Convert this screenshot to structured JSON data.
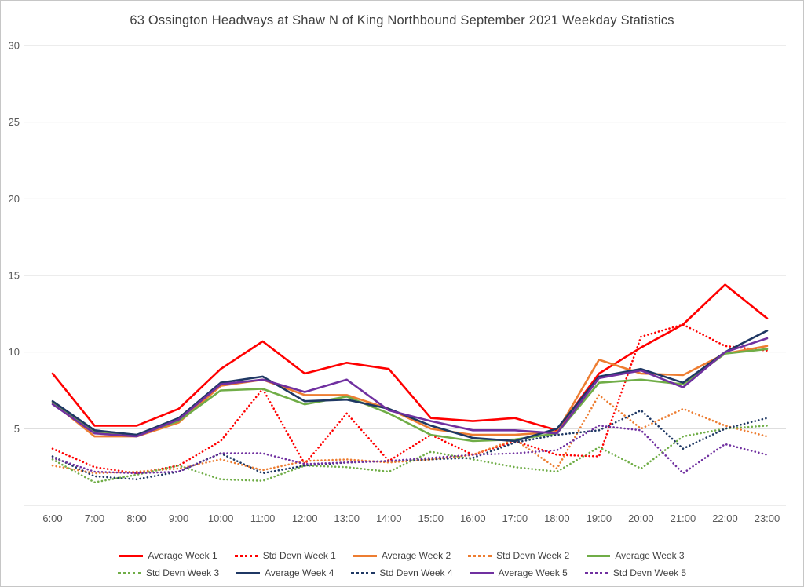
{
  "chart_data": {
    "type": "line",
    "title": "63 Ossington Headways at Shaw N of King Northbound September 2021 Weekday Statistics",
    "xlabel": "",
    "ylabel": "",
    "ylim": [
      0,
      30
    ],
    "yticks": [
      5,
      10,
      15,
      20,
      25,
      30
    ],
    "grid": "horizontal",
    "legend_position": "bottom",
    "x_labels": [
      "6:00",
      "7:00",
      "8:00",
      "9:00",
      "10:00",
      "11:00",
      "12:00",
      "13:00",
      "14:00",
      "15:00",
      "16:00",
      "17:00",
      "18:00",
      "19:00",
      "20:00",
      "21:00",
      "22:00",
      "23:00"
    ],
    "series": [
      {
        "name": "Average Week 1",
        "color": "#ff0000",
        "style": "solid",
        "values": [
          8.6,
          5.2,
          5.2,
          6.3,
          8.9,
          10.7,
          8.6,
          9.3,
          8.9,
          5.7,
          5.5,
          5.7,
          4.9,
          8.6,
          10.3,
          11.8,
          14.4,
          12.2
        ]
      },
      {
        "name": "Std Devn Week 1",
        "color": "#ff0000",
        "style": "dotted",
        "values": [
          3.7,
          2.5,
          2.1,
          2.6,
          4.2,
          7.6,
          2.7,
          6.0,
          2.9,
          4.6,
          3.3,
          4.2,
          3.3,
          3.2,
          11.0,
          11.8,
          10.4,
          10.1
        ]
      },
      {
        "name": "Average Week 2",
        "color": "#ed7d31",
        "style": "solid",
        "values": [
          6.7,
          4.5,
          4.5,
          5.4,
          7.8,
          8.2,
          7.2,
          7.2,
          6.3,
          5.0,
          4.6,
          4.6,
          4.8,
          9.5,
          8.6,
          8.5,
          9.9,
          10.4
        ]
      },
      {
        "name": "Std Devn Week 2",
        "color": "#ed7d31",
        "style": "dotted",
        "values": [
          2.6,
          2.1,
          2.2,
          2.4,
          3.0,
          2.3,
          2.9,
          3.0,
          2.8,
          3.0,
          3.3,
          4.3,
          2.4,
          7.2,
          5.0,
          6.3,
          5.2,
          4.5
        ]
      },
      {
        "name": "Average Week 3",
        "color": "#70ad47",
        "style": "solid",
        "values": [
          6.7,
          4.8,
          4.6,
          5.5,
          7.5,
          7.6,
          6.6,
          7.1,
          6.0,
          4.6,
          4.2,
          4.3,
          4.7,
          8.0,
          8.2,
          7.9,
          9.9,
          10.2
        ]
      },
      {
        "name": "Std Devn Week 3",
        "color": "#70ad47",
        "style": "dotted",
        "values": [
          3.0,
          1.5,
          2.0,
          2.6,
          1.7,
          1.6,
          2.6,
          2.5,
          2.2,
          3.5,
          3.0,
          2.5,
          2.2,
          3.8,
          2.4,
          4.5,
          5.0,
          5.2
        ]
      },
      {
        "name": "Average Week 4",
        "color": "#1f3864",
        "style": "solid",
        "values": [
          6.8,
          4.9,
          4.6,
          5.7,
          8.0,
          8.4,
          6.8,
          6.9,
          6.3,
          5.2,
          4.4,
          4.2,
          5.0,
          8.4,
          8.9,
          8.0,
          10.0,
          11.4
        ]
      },
      {
        "name": "Std Devn Week 4",
        "color": "#1f3864",
        "style": "dotted",
        "values": [
          3.2,
          1.9,
          1.7,
          2.2,
          3.4,
          2.1,
          2.6,
          2.8,
          2.9,
          3.0,
          3.1,
          4.1,
          4.6,
          4.9,
          6.2,
          3.7,
          5.0,
          5.7
        ]
      },
      {
        "name": "Average Week 5",
        "color": "#7030a0",
        "style": "solid",
        "values": [
          6.6,
          4.7,
          4.5,
          5.6,
          7.9,
          8.2,
          7.4,
          8.2,
          6.2,
          5.5,
          4.9,
          4.9,
          4.7,
          8.3,
          8.8,
          7.7,
          10.0,
          10.9
        ]
      },
      {
        "name": "Std Devn Week 5",
        "color": "#7030a0",
        "style": "dotted",
        "values": [
          3.1,
          2.2,
          2.1,
          2.2,
          3.4,
          3.4,
          2.7,
          2.8,
          2.9,
          3.1,
          3.3,
          3.4,
          3.6,
          5.2,
          4.9,
          2.1,
          4.0,
          3.3
        ]
      }
    ],
    "legend_rows": [
      [
        "Average Week 1",
        "Std Devn Week 1",
        "Average Week 2",
        "Std Devn Week 2",
        "Average Week 3"
      ],
      [
        "Std Devn Week 3",
        "Average Week 4",
        "Std Devn Week 4",
        "Average Week 5",
        "Std Devn Week 5"
      ]
    ],
    "colors": {
      "gridline": "#d9d9d9",
      "axis_text": "#595959",
      "title_text": "#404040"
    }
  }
}
